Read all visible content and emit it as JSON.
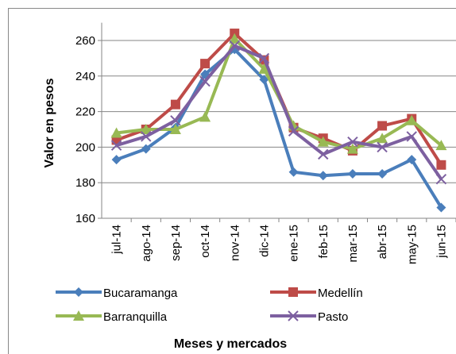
{
  "chart_data": {
    "type": "line",
    "y_label": "Valor en pesos",
    "x_label": "Meses y mercados",
    "categories": [
      "jul-14",
      "ago-14",
      "sep-14",
      "oct-14",
      "nov-14",
      "dic-14",
      "ene-15",
      "feb-15",
      "mar-15",
      "abr-15",
      "may-15",
      "jun-15"
    ],
    "series": [
      {
        "name": "Bucaramanga",
        "color": "#4a7ebb",
        "marker": "diamond",
        "values": [
          193,
          199,
          211,
          241,
          255,
          238,
          186,
          184,
          185,
          185,
          193,
          166
        ]
      },
      {
        "name": "Medellín",
        "color": "#be4b48",
        "marker": "square",
        "values": [
          204,
          210,
          224,
          247,
          264,
          249,
          211,
          205,
          198,
          212,
          216,
          190
        ]
      },
      {
        "name": "Barranquilla",
        "color": "#98b954",
        "marker": "triangle",
        "values": [
          208,
          210,
          210,
          217,
          261,
          244,
          212,
          203,
          199,
          205,
          215,
          201
        ]
      },
      {
        "name": "Pasto",
        "color": "#7d60a0",
        "marker": "x",
        "values": [
          201,
          206,
          215,
          237,
          257,
          250,
          209,
          196,
          203,
          200,
          206,
          182
        ]
      }
    ],
    "ylim": [
      160,
      270
    ],
    "yticks": [
      160,
      180,
      200,
      220,
      240,
      260
    ],
    "grid": true,
    "legend": "bottom"
  }
}
